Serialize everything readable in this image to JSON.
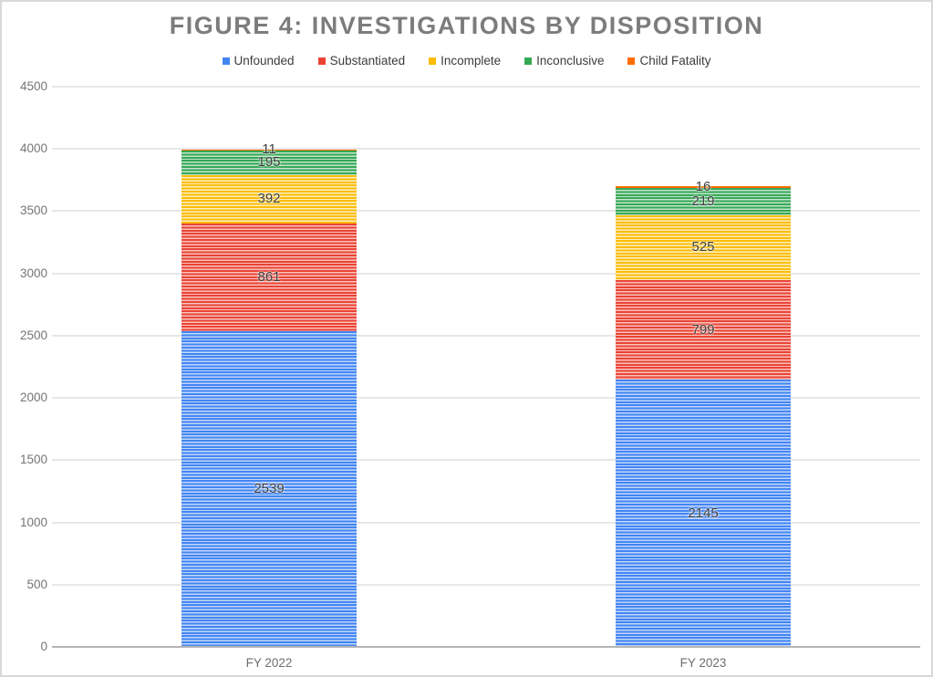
{
  "chart": {
    "title": "FIGURE 4: INVESTIGATIONS BY DISPOSITION"
  },
  "chart_data": {
    "type": "bar",
    "stacked": true,
    "title": "FIGURE 4: INVESTIGATIONS BY DISPOSITION",
    "xlabel": "",
    "ylabel": "",
    "categories": [
      "FY 2022",
      "FY 2023"
    ],
    "series": [
      {
        "name": "Unfounded",
        "color": "#4285F4",
        "stripe_light": "#c2d7f9",
        "values": [
          2539,
          2145
        ]
      },
      {
        "name": "Substantiated",
        "color": "#EA4335",
        "stripe_light": "#f8c3bd",
        "values": [
          861,
          799
        ]
      },
      {
        "name": "Incomplete",
        "color": "#FBBC04",
        "stripe_light": "#fdeec3",
        "values": [
          392,
          525
        ]
      },
      {
        "name": "Inconclusive",
        "color": "#34A853",
        "stripe_light": "#c4e4cf",
        "values": [
          195,
          219
        ]
      },
      {
        "name": "Child Fatality",
        "color": "#FF6D01",
        "stripe_light": "#ffd0a3",
        "values": [
          11,
          16
        ]
      }
    ],
    "totals": [
      3998,
      3704
    ],
    "ylim": [
      0,
      4500
    ],
    "ytick_interval": 500,
    "yticks": [
      0,
      500,
      1000,
      1500,
      2000,
      2500,
      3000,
      3500,
      4000,
      4500
    ],
    "grid": true,
    "legend_position": "top",
    "colors_meta": {
      "title_text": "#7c7c7c",
      "axis_text": "#757575",
      "data_label_text": "#3d3d3d",
      "gridline": "#e7e7e7",
      "axis_line": "#b5b5b5"
    }
  }
}
